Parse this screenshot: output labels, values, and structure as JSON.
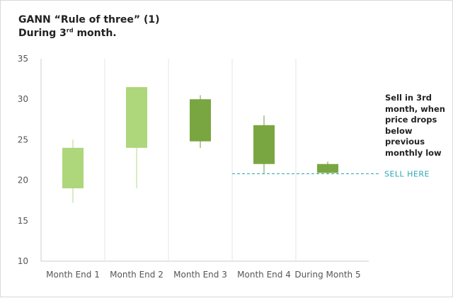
{
  "title": {
    "line1": "GANN “Rule of three” (1)",
    "line2_prefix": "During 3",
    "line2_sup": "rd",
    "line2_suffix": " month."
  },
  "chart_data": {
    "type": "candlestick",
    "title": "GANN “Rule of three” (1) During 3rd month.",
    "xlabel": "",
    "ylabel": "",
    "categories": [
      "Month End 1",
      "Month End 2",
      "Month End 3",
      "Month End 4",
      "During Month 5"
    ],
    "ylim": [
      10,
      35
    ],
    "yticks": [
      10,
      15,
      20,
      25,
      30,
      35
    ],
    "grid": "vertical separators between categories",
    "candles": [
      {
        "category": "Month End 1",
        "open": 19,
        "close": 24,
        "high": 25,
        "low": 17.2,
        "direction": "up"
      },
      {
        "category": "Month End 2",
        "open": 24,
        "close": 31.5,
        "high": 31.5,
        "low": 19,
        "direction": "up"
      },
      {
        "category": "Month End 3",
        "open": 30,
        "close": 24.8,
        "high": 30.5,
        "low": 24,
        "direction": "down"
      },
      {
        "category": "Month End 4",
        "open": 26.8,
        "close": 22,
        "high": 28,
        "low": 20.8,
        "direction": "down"
      },
      {
        "category": "During Month 5",
        "open": 22,
        "close": 20.9,
        "high": 22.3,
        "low": 20.8,
        "direction": "down"
      }
    ],
    "reference_line": {
      "y": 20.8,
      "label": "SELL HERE",
      "x_start_category": "Month End 4"
    },
    "annotation": "Sell in 3rd month, when price drops below previous monthly low",
    "colors": {
      "up": "#aed67a",
      "down": "#7aa642",
      "wick_up": "#b4d98a",
      "wick_down": "#6f9a3d",
      "axis": "#cccccc",
      "tick_text": "#555555",
      "reference": "#2aa6b4"
    }
  }
}
